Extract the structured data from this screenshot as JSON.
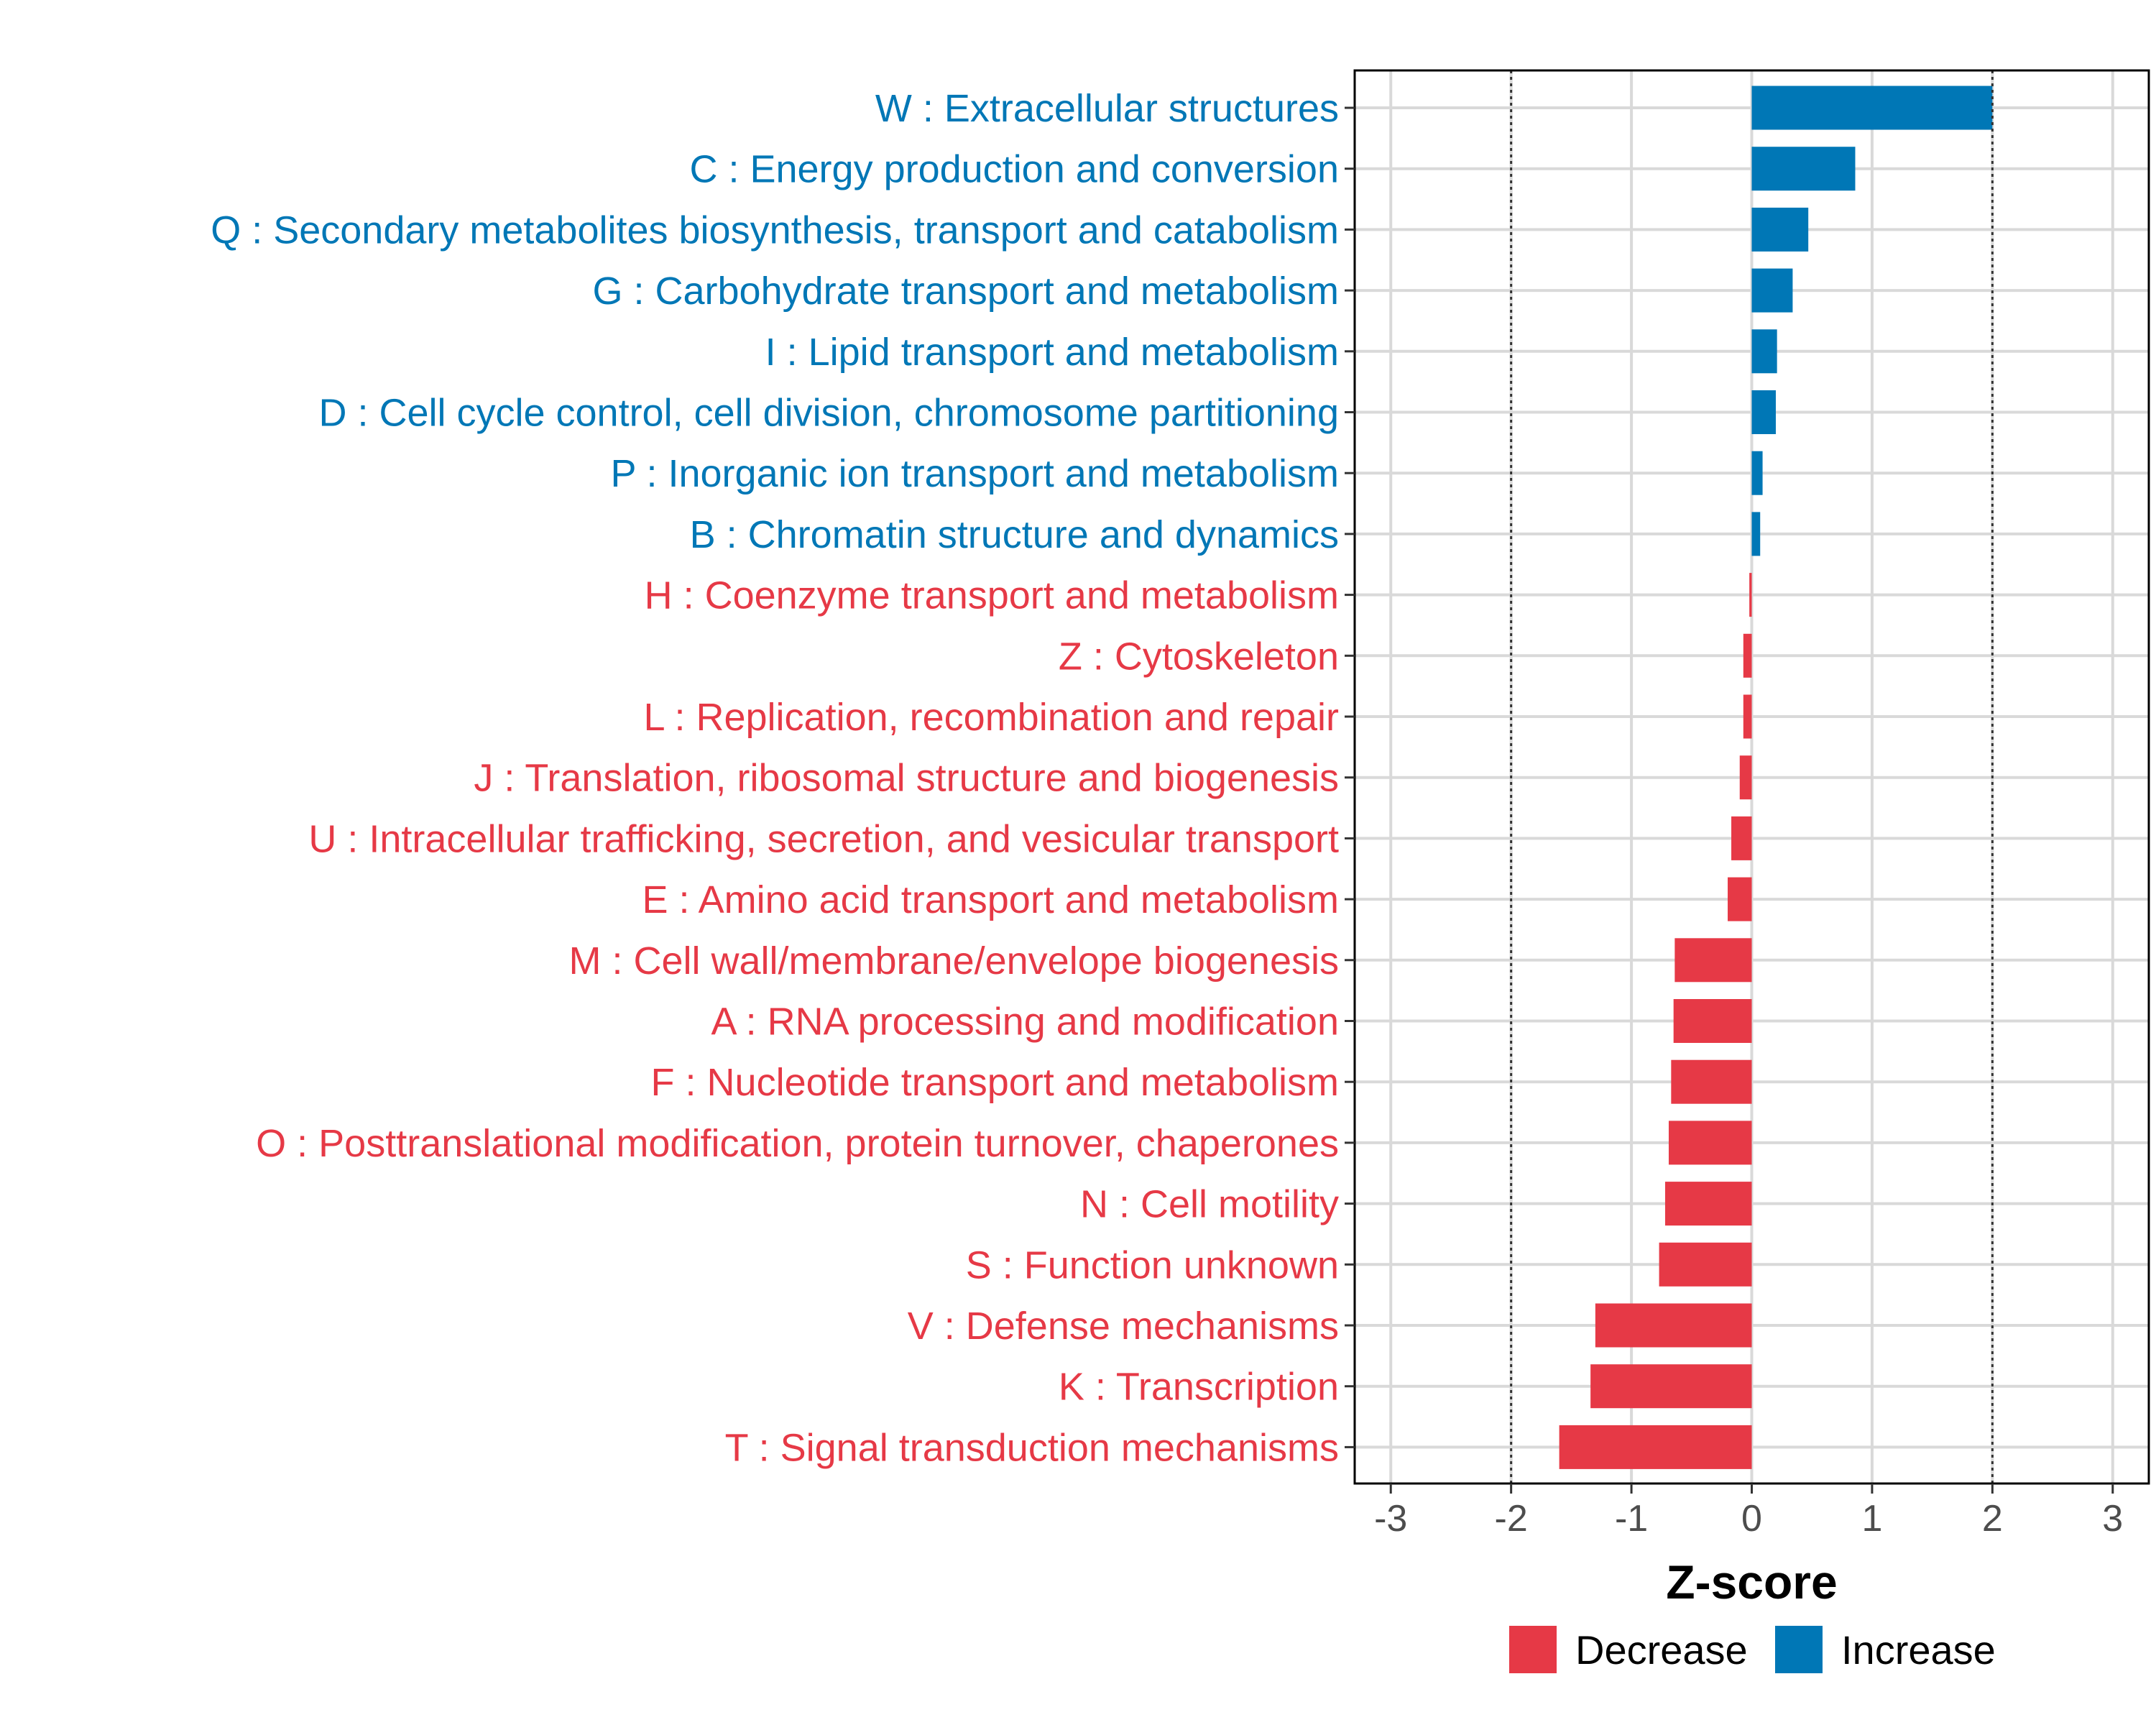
{
  "chart_data": {
    "type": "bar",
    "orientation": "horizontal",
    "title": "",
    "xlabel": "Z-score",
    "ylabel": "",
    "xlim": [
      -3.3,
      3.3
    ],
    "xticks": [
      -3,
      -2,
      -1,
      0,
      1,
      2,
      3
    ],
    "xtick_labels": [
      "-3",
      "-2",
      "-1",
      "0",
      "1",
      "2",
      "3"
    ],
    "reference_lines": [
      -2,
      2
    ],
    "grid": true,
    "categories": [
      "W : Extracellular structures",
      "C : Energy production and conversion",
      "Q : Secondary metabolites biosynthesis, transport and catabolism",
      "G : Carbohydrate transport and metabolism",
      "I : Lipid transport and metabolism",
      "D : Cell cycle control, cell division, chromosome partitioning",
      "P : Inorganic ion transport and metabolism",
      "B : Chromatin structure and dynamics",
      "H : Coenzyme transport and metabolism",
      "Z : Cytoskeleton",
      "L : Replication, recombination and repair",
      "J : Translation, ribosomal structure and biogenesis",
      "U : Intracellular trafficking, secretion, and vesicular transport",
      "E : Amino acid transport and metabolism",
      "M : Cell wall/membrane/envelope biogenesis",
      "A : RNA processing and modification",
      "F : Nucleotide transport and metabolism",
      "O : Posttranslational modification, protein turnover, chaperones",
      "N : Cell motility",
      "S : Function unknown",
      "V : Defense mechanisms",
      "K : Transcription",
      "T : Signal transduction mechanisms"
    ],
    "values": [
      2.0,
      0.86,
      0.47,
      0.34,
      0.21,
      0.2,
      0.09,
      0.07,
      -0.02,
      -0.07,
      -0.07,
      -0.1,
      -0.17,
      -0.2,
      -0.64,
      -0.65,
      -0.67,
      -0.69,
      -0.72,
      -0.77,
      -1.3,
      -1.34,
      -1.6
    ],
    "groups": [
      "Increase",
      "Increase",
      "Increase",
      "Increase",
      "Increase",
      "Increase",
      "Increase",
      "Increase",
      "Decrease",
      "Decrease",
      "Decrease",
      "Decrease",
      "Decrease",
      "Decrease",
      "Decrease",
      "Decrease",
      "Decrease",
      "Decrease",
      "Decrease",
      "Decrease",
      "Decrease",
      "Decrease",
      "Decrease"
    ],
    "legend": {
      "position": "bottom",
      "entries": [
        {
          "label": "Decrease",
          "color": "#e63946"
        },
        {
          "label": "Increase",
          "color": "#0077b6"
        }
      ]
    }
  },
  "colors": {
    "decrease": "#e63946",
    "increase": "#0077b6",
    "grid": "#d9d9d9",
    "tick_text": "#4d4d4d"
  }
}
